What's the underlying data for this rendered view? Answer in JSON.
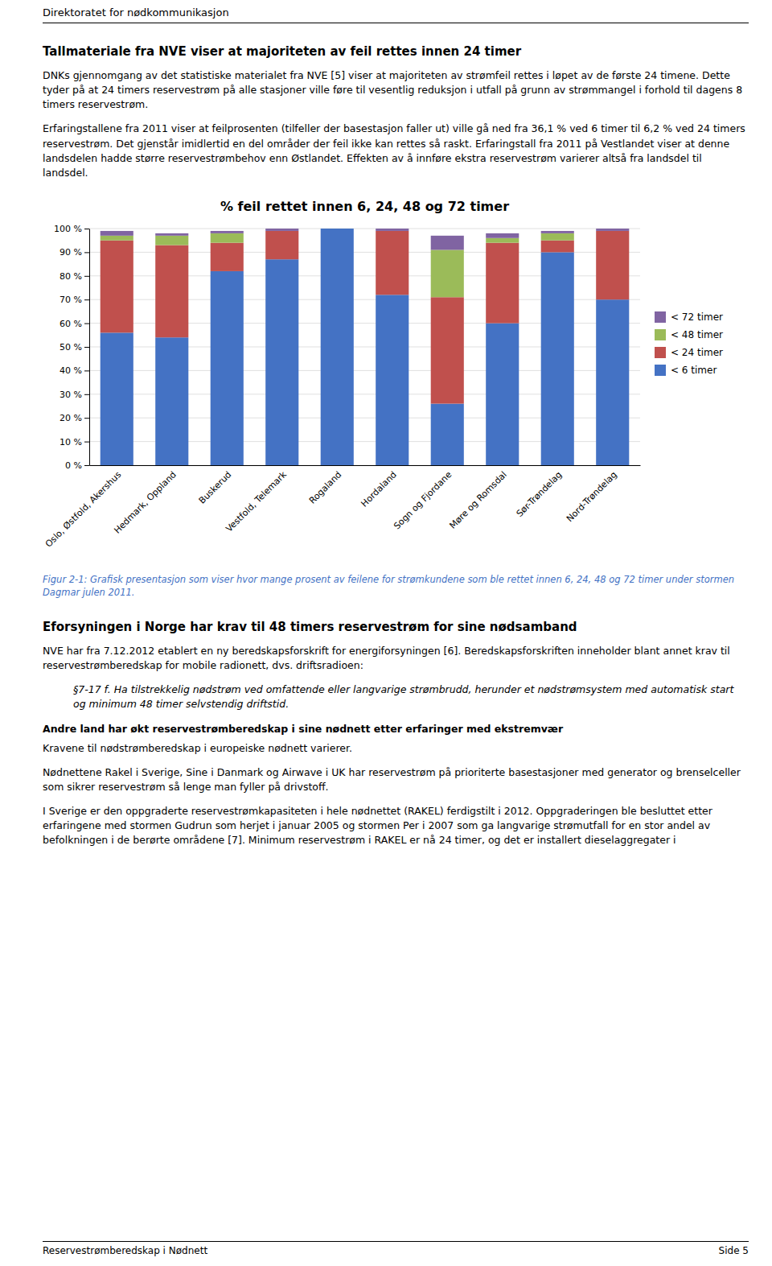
{
  "header": "Direktoratet for nødkommunikasjon",
  "section_heading": "Tallmateriale fra NVE viser at majoriteten av feil rettes innen 24 timer",
  "body_paragraphs": [
    "DNKs gjennomgang av det statistiske materialet fra NVE [5] viser at majoriteten av strømfeil rettes i løpet av de første 24 timene. Dette tyder på at 24 timers reservestrøm på alle stasjoner ville føre til vesentlig reduksjon i utfall på grunn av strømmangel i forhold til dagens 8 timers reservestrøm.",
    "Erfaringstallene fra 2011 viser at feilprosenten (tilfeller der basestasjon faller ut) ville gå ned fra 36,1 % ved 6 timer til 6,2 % ved 24 timers reservestrøm. Det gjenstår imidlertid en del områder der feil ikke kan rettes så raskt. Erfaringstall fra 2011 på Vestlandet viser at denne landsdelen hadde større reservestrømbehov enn Østlandet. Effekten av å innføre ekstra reservestrøm varierer altså fra landsdel til landsdel."
  ],
  "chart_data": {
    "type": "bar",
    "stacked": true,
    "title": "% feil rettet innen 6, 24, 48 og 72 timer",
    "categories": [
      "Oslo, Østfold, Akershus",
      "Hedmark, Oppland",
      "Buskerud",
      "Vestfold, Telemark",
      "Rogaland",
      "Hordaland",
      "Sogn og Fjordane",
      "Møre og Romsdal",
      "Sør-Trøndelag",
      "Nord-Trøndelag"
    ],
    "series": [
      {
        "name": "< 6 timer",
        "color": "#4472C4",
        "values": [
          56,
          54,
          82,
          87,
          100,
          72,
          26,
          60,
          90,
          70
        ]
      },
      {
        "name": "< 24 timer",
        "color": "#C0504D",
        "values": [
          39,
          39,
          12,
          12,
          0,
          27,
          45,
          34,
          5,
          29
        ]
      },
      {
        "name": "< 48 timer",
        "color": "#9BBB59",
        "values": [
          2,
          4,
          4,
          0,
          0,
          0,
          20,
          2,
          3,
          0
        ]
      },
      {
        "name": "< 72 timer",
        "color": "#8064A2",
        "values": [
          2,
          1,
          1,
          1,
          0,
          1,
          6,
          2,
          1,
          1
        ]
      }
    ],
    "ylim": [
      0,
      100
    ],
    "yticks": [
      {
        "value": 0,
        "label": "0 %"
      },
      {
        "value": 10,
        "label": "10 %"
      },
      {
        "value": 20,
        "label": "20 %"
      },
      {
        "value": 30,
        "label": "30 %"
      },
      {
        "value": 40,
        "label": "40 %"
      },
      {
        "value": 50,
        "label": "50 %"
      },
      {
        "value": 60,
        "label": "60 %"
      },
      {
        "value": 70,
        "label": "70 %"
      },
      {
        "value": 80,
        "label": "80 %"
      },
      {
        "value": 90,
        "label": "90 %"
      },
      {
        "value": 100,
        "label": "100 %"
      }
    ],
    "grid": true,
    "legend": "right"
  },
  "figure_caption": "Figur 2-1: Grafisk presentasjon som viser hvor mange prosent av feilene for strømkundene som ble rettet innen 6, 24, 48 og 72 timer under stormen Dagmar julen 2011.",
  "section_heading2": "Eforsyningen i Norge har krav til 48 timers reservestrøm for sine nødsamband",
  "body_paragraphs2": [
    "NVE har fra 7.12.2012 etablert en ny beredskapsforskrift for energiforsyningen [6]. Beredskapsforskriften inneholder blant annet krav til reservestrømberedskap for mobile radionett, dvs. driftsradioen:",
    "§7-17 f. Ha tilstrekkelig nødstrøm ved omfattende eller langvarige strømbrudd, herunder et nødstrømsystem med automatisk start og minimum 48 timer selvstendig driftstid.",
    "Andre land har økt reservestrømberedskap i sine nødnett etter erfaringer med ekstremvær",
    "Kravene til nødstrømberedskap i europeiske nødnett varierer.",
    "Nødnettene Rakel i Sverige, Sine i Danmark og Airwave i UK har reservestrøm på prioriterte basestasjoner med generator og brenselceller som sikrer reservestrøm så lenge man fyller på drivstoff.",
    "I Sverige er den oppgraderte reservestrømkapasiteten i hele nødnettet (RAKEL) ferdigstilt i 2012. Oppgraderingen ble besluttet etter erfaringene med stormen Gudrun som herjet i januar 2005 og stormen Per i 2007 som ga langvarige strømutfall for en stor andel av befolkningen i de berørte områdene [7]. Minimum reservestrøm i RAKEL er nå 24 timer, og det er installert dieselaggregater i"
  ],
  "footer_left": "Reservestrømberedskap i Nødnett",
  "footer_right": "Side 5"
}
